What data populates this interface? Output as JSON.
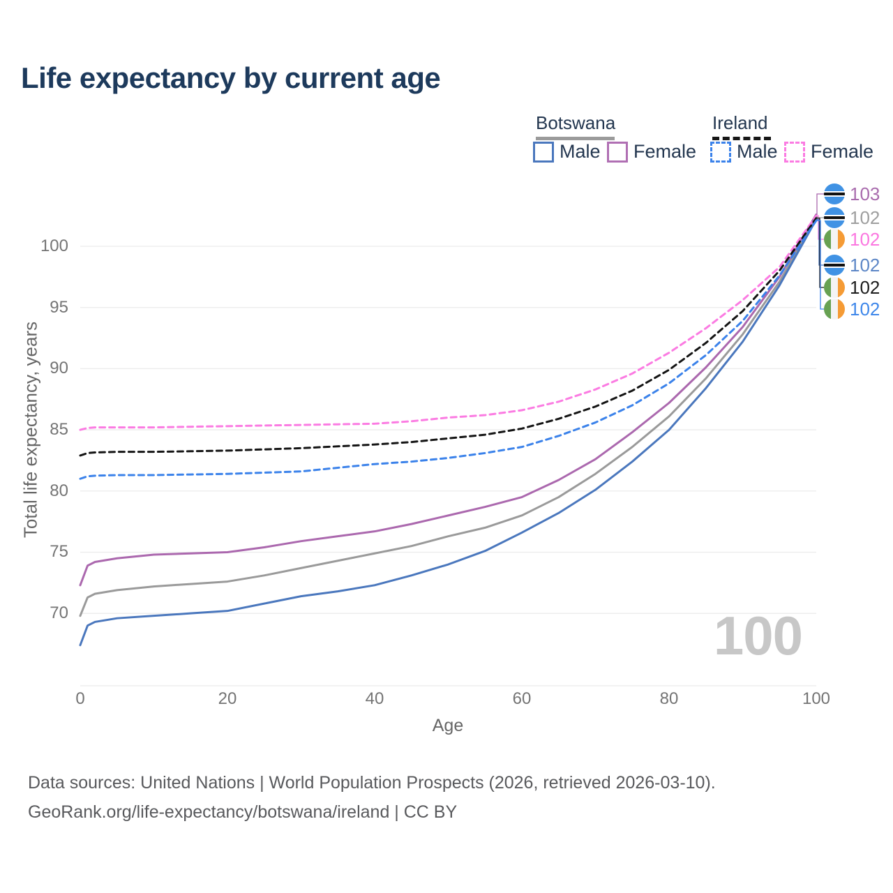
{
  "title": "Life expectancy by current age",
  "legend": {
    "groups": [
      {
        "label": "Botswana",
        "line_style": "solid",
        "underline_color": "#9b9b9b",
        "items": [
          {
            "label": "Male",
            "color": "#4a77bd",
            "dash": false
          },
          {
            "label": "Female",
            "color": "#b06fb3",
            "dash": false
          }
        ]
      },
      {
        "label": "Ireland",
        "line_style": "dashed",
        "underline_color": "#161616",
        "items": [
          {
            "label": "Male",
            "color": "#3b82ea",
            "dash": true
          },
          {
            "label": "Female",
            "color": "#fb7be2",
            "dash": true
          }
        ]
      }
    ]
  },
  "y_axis": {
    "title": "Total life expectancy, years",
    "ticks": [
      100,
      95,
      90,
      85,
      80,
      75,
      70
    ],
    "tick_labels": [
      "100",
      "95",
      "90",
      "85",
      "80",
      "75",
      "70"
    ]
  },
  "x_axis": {
    "title": "Age",
    "ticks": [
      0,
      20,
      40,
      60,
      80,
      100
    ],
    "tick_labels": [
      "0",
      "20",
      "40",
      "60",
      "80",
      "100"
    ]
  },
  "watermark": "100",
  "end_labels": [
    {
      "series": "botswana_female",
      "flag": "botswana",
      "value": "103",
      "color": "#a86bad"
    },
    {
      "series": "botswana_total",
      "flag": "botswana",
      "value": "102",
      "color": "#9e9e9e"
    },
    {
      "series": "ireland_female",
      "flag": "ireland",
      "value": "102",
      "color": "#fb77e0"
    },
    {
      "series": "botswana_male",
      "flag": "botswana",
      "value": "102",
      "color": "#5c86c6"
    },
    {
      "series": "ireland_total",
      "flag": "ireland",
      "value": "102",
      "color": "#1c1c1c"
    },
    {
      "series": "ireland_male",
      "flag": "ireland",
      "value": "102",
      "color": "#3e87ea"
    }
  ],
  "footer": {
    "line1": "Data sources: United Nations | World Population Prospects (2026, retrieved 2026-03-10).",
    "line2": "GeoRank.org/life-expectancy/botswana/ireland | CC BY"
  },
  "chart_data": {
    "type": "line",
    "title": "Life expectancy by current age",
    "xlabel": "Age",
    "ylabel": "Total life expectancy, years",
    "xlim": [
      0,
      100
    ],
    "ylim": [
      65,
      103.5
    ],
    "grid": "horizontal",
    "legend_position": "top-right",
    "ages": [
      0,
      1,
      2,
      5,
      10,
      15,
      20,
      25,
      30,
      35,
      40,
      45,
      50,
      55,
      60,
      65,
      70,
      75,
      80,
      85,
      90,
      95,
      100
    ],
    "series": [
      {
        "id": "botswana_female",
        "name": "Botswana Female",
        "color": "#ab68ae",
        "dash": false,
        "values": [
          72.3,
          73.9,
          74.2,
          74.5,
          74.8,
          74.9,
          75.0,
          75.4,
          75.9,
          76.3,
          76.7,
          77.3,
          78.0,
          78.7,
          79.5,
          80.9,
          82.6,
          84.8,
          87.2,
          90.1,
          93.4,
          97.5,
          102.6
        ]
      },
      {
        "id": "botswana_total",
        "name": "Botswana Total",
        "color": "#9a9a9a",
        "dash": false,
        "values": [
          69.8,
          71.3,
          71.6,
          71.9,
          72.2,
          72.4,
          72.6,
          73.1,
          73.7,
          74.3,
          74.9,
          75.5,
          76.3,
          77.0,
          78.0,
          79.5,
          81.4,
          83.6,
          86.1,
          89.2,
          92.8,
          97.1,
          102.4
        ]
      },
      {
        "id": "botswana_male",
        "name": "Botswana Male",
        "color": "#4a77bd",
        "dash": false,
        "values": [
          67.4,
          69.0,
          69.3,
          69.6,
          69.8,
          70.0,
          70.2,
          70.8,
          71.4,
          71.8,
          72.3,
          73.1,
          74.0,
          75.1,
          76.6,
          78.2,
          80.1,
          82.4,
          85.0,
          88.4,
          92.2,
          96.8,
          102.2
        ]
      },
      {
        "id": "ireland_female",
        "name": "Ireland Female",
        "color": "#fb7be2",
        "dash": true,
        "values": [
          85.0,
          85.15,
          85.2,
          85.2,
          85.2,
          85.25,
          85.3,
          85.35,
          85.4,
          85.45,
          85.5,
          85.7,
          86.0,
          86.2,
          86.6,
          87.3,
          88.3,
          89.6,
          91.3,
          93.3,
          95.6,
          98.3,
          102.5
        ]
      },
      {
        "id": "ireland_total",
        "name": "Ireland Total",
        "color": "#141414",
        "dash": true,
        "values": [
          82.9,
          83.1,
          83.15,
          83.2,
          83.2,
          83.25,
          83.3,
          83.4,
          83.5,
          83.65,
          83.8,
          84.0,
          84.3,
          84.6,
          85.1,
          85.9,
          86.9,
          88.2,
          89.9,
          92.1,
          94.7,
          98.0,
          102.3
        ]
      },
      {
        "id": "ireland_male",
        "name": "Ireland Male",
        "color": "#3b82ea",
        "dash": true,
        "values": [
          81.0,
          81.2,
          81.25,
          81.3,
          81.3,
          81.35,
          81.4,
          81.5,
          81.6,
          81.9,
          82.2,
          82.4,
          82.7,
          83.1,
          83.6,
          84.5,
          85.6,
          87.0,
          88.8,
          91.1,
          93.9,
          97.6,
          102.1
        ]
      }
    ]
  }
}
